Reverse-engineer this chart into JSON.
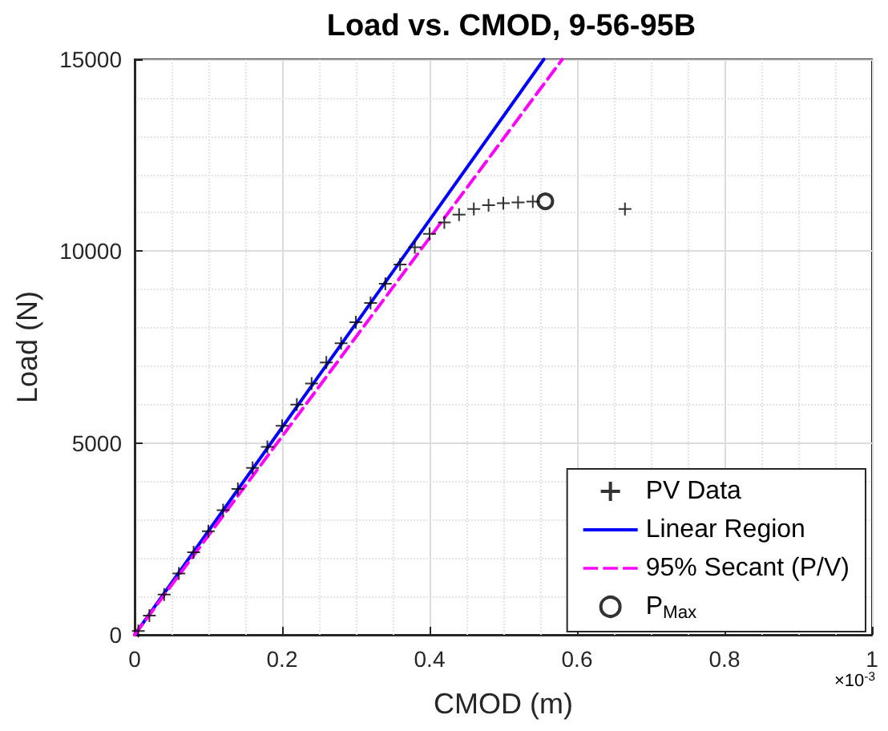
{
  "chart_data": {
    "type": "scatter",
    "title": "Load vs. CMOD, 9-56-95B",
    "xlabel": "CMOD (m)",
    "ylabel": "Load (N)",
    "xlim": [
      0,
      1
    ],
    "ylim": [
      0,
      15000
    ],
    "xticks": [
      0,
      0.2,
      0.4,
      0.6,
      0.8,
      1
    ],
    "yticks": [
      0,
      5000,
      10000,
      15000
    ],
    "grid": true,
    "legend": "bottom right",
    "annotations": [
      "×10$^{-3}$"
    ],
    "series": [
      {
        "name": "PV Data",
        "marker": "cross",
        "color": "#000000",
        "x": [
          0.005,
          0.02,
          0.04,
          0.06,
          0.08,
          0.1,
          0.12,
          0.14,
          0.16,
          0.18,
          0.2,
          0.22,
          0.24,
          0.26,
          0.28,
          0.3,
          0.32,
          0.34,
          0.36,
          0.38,
          0.4,
          0.42,
          0.44,
          0.46,
          0.48,
          0.5,
          0.52,
          0.54,
          0.665
        ],
        "values": [
          100,
          500,
          1050,
          1600,
          2150,
          2700,
          3250,
          3800,
          4350,
          4900,
          5450,
          6000,
          6550,
          7100,
          7600,
          8150,
          8650,
          9150,
          9650,
          10100,
          10450,
          10750,
          10950,
          11100,
          11200,
          11250,
          11270,
          11290,
          11100
        ]
      },
      {
        "name": "Linear Region",
        "type": "line",
        "marker": "none",
        "line_style": "solid",
        "color": "#0000ff",
        "x": [
          0,
          0.555
        ],
        "values": [
          0,
          15000
        ]
      },
      {
        "name": "95% Secant (P/V)",
        "type": "line",
        "marker": "none",
        "line_style": "dashed",
        "color": "#ff00ff",
        "x": [
          0,
          0.58
        ],
        "values": [
          0,
          15000
        ]
      },
      {
        "name": "P$_{Max}$",
        "marker": "circle",
        "color": "#000000",
        "x": [
          0.557
        ],
        "values": [
          11300
        ]
      }
    ]
  }
}
